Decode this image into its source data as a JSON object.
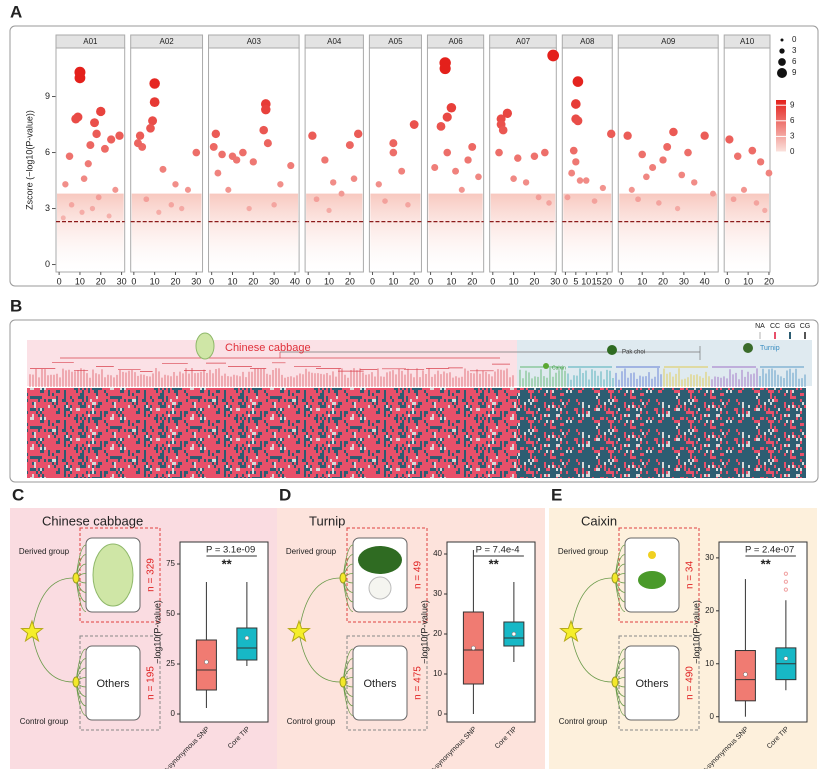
{
  "chart_data": [
    {
      "type": "scatter",
      "panel": "A",
      "ylabel": "Zscore (−log10(P-value))",
      "ylim": [
        -0.4,
        11.6
      ],
      "yticks": [
        0,
        3,
        6,
        9
      ],
      "threshold": 2.3,
      "size_legend": [
        0,
        3,
        6,
        9
      ],
      "colorbar": {
        "range": [
          0,
          10
        ],
        "ticks": [
          0,
          3,
          6,
          9
        ],
        "colors": [
          "#fbe3de",
          "#e4201b"
        ]
      },
      "facets": [
        {
          "name": "A01",
          "xlim": [
            -1.5,
            31.5
          ],
          "xticks": [
            0,
            10,
            20,
            30
          ],
          "x": [
            10,
            10,
            9,
            8,
            20,
            17,
            18,
            15,
            22,
            25,
            14,
            5,
            3,
            12,
            19,
            27,
            6,
            11,
            16,
            24,
            2,
            29
          ],
          "y": [
            10.3,
            10.0,
            7.9,
            7.8,
            8.2,
            7.6,
            7.0,
            6.4,
            6.2,
            6.7,
            5.4,
            5.8,
            4.3,
            4.6,
            3.6,
            4.0,
            3.2,
            2.8,
            3.0,
            2.6,
            2.5,
            6.9
          ]
        },
        {
          "name": "A02",
          "xlim": [
            -1.5,
            33
          ],
          "xticks": [
            0,
            10,
            20,
            30
          ],
          "x": [
            10,
            10,
            9,
            8,
            4,
            2,
            3,
            14,
            20,
            26,
            30,
            6,
            18,
            12,
            23
          ],
          "y": [
            9.7,
            8.7,
            7.7,
            7.3,
            6.3,
            6.5,
            6.9,
            5.1,
            4.3,
            4.0,
            6.0,
            3.5,
            3.2,
            2.8,
            3.0
          ]
        },
        {
          "name": "A03",
          "xlim": [
            -1.5,
            42
          ],
          "xticks": [
            0,
            10,
            20,
            30,
            40
          ],
          "x": [
            26,
            26,
            25,
            27,
            2,
            1,
            5,
            10,
            12,
            15,
            3,
            20,
            33,
            38,
            8,
            30,
            18
          ],
          "y": [
            8.6,
            8.3,
            7.2,
            6.5,
            7.0,
            6.3,
            5.9,
            5.8,
            5.6,
            6.0,
            4.9,
            5.5,
            4.3,
            5.3,
            4.0,
            3.2,
            3.0
          ]
        },
        {
          "name": "A04",
          "xlim": [
            -1.5,
            26.5
          ],
          "xticks": [
            0,
            10,
            20
          ],
          "x": [
            2,
            8,
            20,
            24,
            12,
            4,
            16,
            22,
            10
          ],
          "y": [
            6.9,
            5.6,
            6.4,
            7.0,
            4.4,
            3.5,
            3.8,
            4.6,
            2.9
          ]
        },
        {
          "name": "A05",
          "xlim": [
            -1.5,
            23.5
          ],
          "xticks": [
            0,
            10,
            20
          ],
          "x": [
            10,
            10,
            20,
            3,
            14,
            6,
            17
          ],
          "y": [
            6.5,
            6.0,
            7.5,
            4.3,
            5.0,
            3.4,
            3.2
          ]
        },
        {
          "name": "A06",
          "xlim": [
            -1.5,
            25.5
          ],
          "xticks": [
            0,
            10,
            20
          ],
          "x": [
            7,
            7,
            10,
            8,
            5,
            8,
            2,
            12,
            18,
            20,
            15,
            23
          ],
          "y": [
            10.8,
            10.5,
            8.4,
            7.9,
            7.4,
            6.0,
            5.2,
            5.0,
            5.6,
            6.3,
            4.0,
            4.7
          ]
        },
        {
          "name": "A07",
          "xlim": [
            -1.5,
            30.5
          ],
          "xticks": [
            0,
            10,
            20,
            30
          ],
          "x": [
            29,
            4,
            4,
            7,
            5,
            3,
            12,
            10,
            16,
            20,
            25,
            22,
            27
          ],
          "y": [
            11.2,
            7.8,
            7.5,
            8.1,
            7.2,
            6.0,
            5.7,
            4.6,
            4.4,
            5.8,
            6.0,
            3.6,
            3.3
          ]
        },
        {
          "name": "A08",
          "xlim": [
            -1.5,
            22.5
          ],
          "xticks": [
            0,
            5,
            10,
            15,
            20
          ],
          "x": [
            6,
            5,
            5,
            6,
            4,
            5,
            3,
            7,
            22,
            10,
            14,
            18,
            1
          ],
          "y": [
            9.8,
            8.6,
            7.8,
            7.7,
            6.1,
            5.5,
            4.9,
            4.5,
            7.0,
            4.5,
            3.4,
            4.1,
            3.6
          ]
        },
        {
          "name": "A09",
          "xlim": [
            -1.5,
            46.5
          ],
          "xticks": [
            0,
            10,
            20,
            30,
            40
          ],
          "x": [
            3,
            10,
            25,
            22,
            32,
            40,
            15,
            12,
            20,
            29,
            5,
            35,
            44,
            8,
            18,
            27
          ],
          "y": [
            6.9,
            5.9,
            7.1,
            6.3,
            6.0,
            6.9,
            5.2,
            4.7,
            5.6,
            4.8,
            4.0,
            4.4,
            3.8,
            3.5,
            3.3,
            3.0
          ]
        },
        {
          "name": "A10",
          "xlim": [
            -1.5,
            20.5
          ],
          "xticks": [
            0,
            10,
            20
          ],
          "x": [
            1,
            5,
            12,
            16,
            20,
            8,
            3,
            14,
            18
          ],
          "y": [
            6.7,
            5.8,
            6.1,
            5.5,
            4.9,
            4.0,
            3.5,
            3.3,
            2.9
          ]
        }
      ]
    },
    {
      "type": "heatmap",
      "panel": "B",
      "groups": [
        "Chinese cabbage",
        "Pak choi",
        "Caixin",
        "Turnip"
      ],
      "legend": [
        "NA",
        "CC",
        "GG",
        "CG"
      ],
      "legend_colors": [
        "#d9d9d9",
        "#e8506a",
        "#2d5d72",
        "#555555"
      ]
    },
    {
      "type": "box",
      "panel": "C",
      "title": "Chinese cabbage",
      "derived_label": "Derived group",
      "control_label": "Control group",
      "derived_n": "n = 329",
      "control_n": "n = 195",
      "others": "Others",
      "ylabel": "−log10(P-value)",
      "p_label": "P = 3.1e-09",
      "signif": "**",
      "categories": [
        "Core non-synonymous SNP",
        "Core TIP"
      ],
      "colors": [
        "#f07b72",
        "#17b8c6"
      ],
      "background": "#fadce1",
      "ylim": [
        -4,
        86
      ],
      "yticks": [
        0,
        25,
        50,
        75
      ],
      "boxes": [
        {
          "min": 3,
          "q1": 12,
          "median": 22,
          "q3": 37,
          "max": 66,
          "mean": 26
        },
        {
          "min": 24,
          "q1": 27,
          "median": 33,
          "q3": 43,
          "max": 66,
          "mean": 38
        }
      ]
    },
    {
      "type": "box",
      "panel": "D",
      "title": "Turnip",
      "derived_label": "Derived group",
      "control_label": "Control group",
      "derived_n": "n = 49",
      "control_n": "n = 475",
      "others": "Others",
      "ylabel": "−log10(P-value)",
      "p_label": "P = 7.4e-4",
      "signif": "**",
      "categories": [
        "Core non-synonymous SNP",
        "Core TIP"
      ],
      "colors": [
        "#f07b72",
        "#17b8c6"
      ],
      "background": "#fde3dc",
      "ylim": [
        -2,
        43
      ],
      "yticks": [
        0,
        10,
        20,
        30,
        40
      ],
      "boxes": [
        {
          "min": 0,
          "q1": 7.5,
          "median": 16,
          "q3": 25.5,
          "max": 41,
          "mean": 16.5
        },
        {
          "min": 13,
          "q1": 17,
          "median": 19,
          "q3": 23,
          "max": 33,
          "mean": 20
        }
      ]
    },
    {
      "type": "box",
      "panel": "E",
      "title": "Caixin",
      "derived_label": "Derived group",
      "control_label": "Control group",
      "derived_n": "n = 34",
      "control_n": "n = 490",
      "others": "Others",
      "ylabel": "−log10(P-value)",
      "p_label": "P = 2.4e-07",
      "signif": "**",
      "categories": [
        "Core non-synonymous SNP",
        "Core TIP"
      ],
      "colors": [
        "#f07b72",
        "#17b8c6"
      ],
      "background": "#fdf0dc",
      "ylim": [
        -1,
        33
      ],
      "yticks": [
        0,
        10,
        20,
        30
      ],
      "boxes": [
        {
          "min": 0,
          "q1": 3,
          "median": 7,
          "q3": 12.5,
          "max": 26,
          "mean": 8
        },
        {
          "min": 5,
          "q1": 7,
          "median": 10,
          "q3": 13,
          "max": 22,
          "mean": 11,
          "outliers": [
            24,
            25.5,
            27
          ]
        }
      ]
    }
  ]
}
